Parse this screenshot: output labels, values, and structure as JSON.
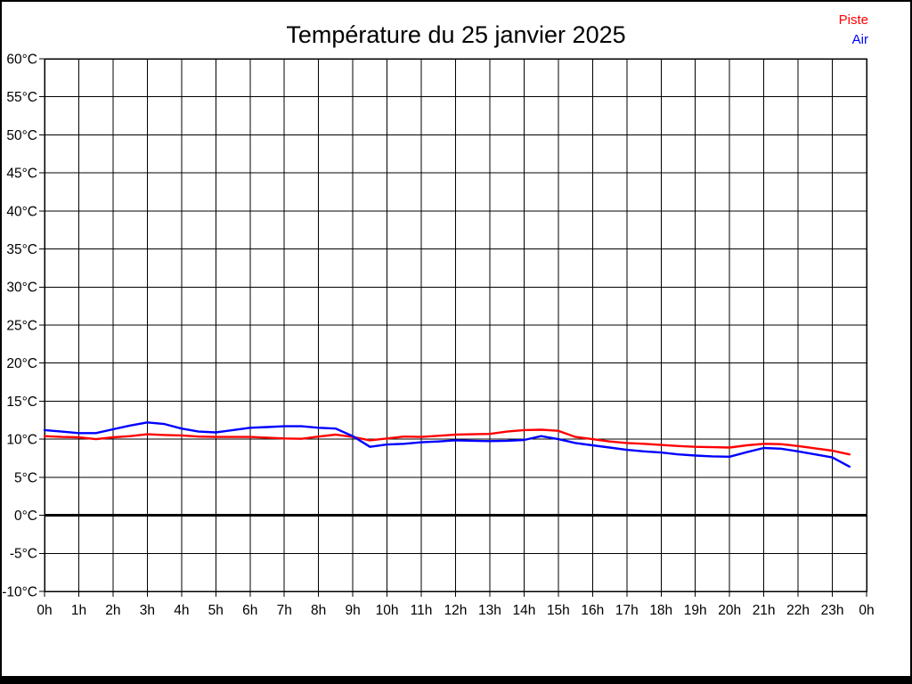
{
  "page": {
    "title": "Température du 25 janvier 2025",
    "legend": [
      {
        "label": "Piste",
        "color": "#ff0000"
      },
      {
        "label": "Air",
        "color": "#0000ff"
      }
    ]
  },
  "chart_data": {
    "type": "line",
    "title": "Température du 25 janvier 2025",
    "xlabel": "",
    "ylabel": "",
    "x_unit": "h",
    "y_unit": "°C",
    "xlim": [
      0,
      24
    ],
    "ylim": [
      -10,
      60
    ],
    "grid": true,
    "legend_position": "top-right",
    "x_tick_labels": [
      "0h",
      "1h",
      "2h",
      "3h",
      "4h",
      "5h",
      "6h",
      "7h",
      "8h",
      "9h",
      "10h",
      "11h",
      "12h",
      "13h",
      "14h",
      "15h",
      "16h",
      "17h",
      "18h",
      "19h",
      "20h",
      "21h",
      "22h",
      "23h",
      "0h"
    ],
    "y_tick_labels": [
      "60°C",
      "55°C",
      "50°C",
      "45°C",
      "40°C",
      "35°C",
      "30°C",
      "25°C",
      "20°C",
      "15°C",
      "10°C",
      "5°C",
      "0°C",
      "-5°C",
      "-10°C"
    ],
    "zero_line": {
      "value": 0,
      "color": "#000000",
      "width": 3
    },
    "x": [
      0,
      0.5,
      1,
      1.5,
      2,
      2.5,
      3,
      3.5,
      4,
      4.5,
      5,
      5.5,
      6,
      6.5,
      7,
      7.5,
      8,
      8.5,
      9,
      9.5,
      10,
      10.5,
      11,
      11.5,
      12,
      12.5,
      13,
      13.5,
      14,
      14.5,
      15,
      15.5,
      16,
      16.5,
      17,
      17.5,
      18,
      18.5,
      19,
      19.5,
      20,
      20.5,
      21,
      21.5,
      22,
      22.5,
      23,
      23.5
    ],
    "series": [
      {
        "name": "Piste",
        "color": "#ff0000",
        "values": [
          10.4,
          10.3,
          10.25,
          10.0,
          10.25,
          10.4,
          10.65,
          10.55,
          10.5,
          10.35,
          10.3,
          10.3,
          10.3,
          10.2,
          10.1,
          10.05,
          10.35,
          10.6,
          10.3,
          9.85,
          10.1,
          10.35,
          10.3,
          10.45,
          10.6,
          10.65,
          10.7,
          11.0,
          11.2,
          11.25,
          11.1,
          10.3,
          10.0,
          9.7,
          9.5,
          9.4,
          9.25,
          9.1,
          9.0,
          8.95,
          8.9,
          9.2,
          9.4,
          9.35,
          9.1,
          8.8,
          8.5,
          8.0
        ]
      },
      {
        "name": "Air",
        "color": "#0000ff",
        "values": [
          11.2,
          11.0,
          10.8,
          10.8,
          11.3,
          11.8,
          12.2,
          12.0,
          11.4,
          11.0,
          10.9,
          11.2,
          11.5,
          11.6,
          11.7,
          11.7,
          11.5,
          11.4,
          10.4,
          9.0,
          9.3,
          9.4,
          9.6,
          9.7,
          9.85,
          9.8,
          9.75,
          9.8,
          9.9,
          10.4,
          10.0,
          9.5,
          9.2,
          8.9,
          8.6,
          8.4,
          8.25,
          8.0,
          7.85,
          7.75,
          7.7,
          8.3,
          8.85,
          8.75,
          8.4,
          8.0,
          7.6,
          6.4
        ]
      }
    ]
  }
}
